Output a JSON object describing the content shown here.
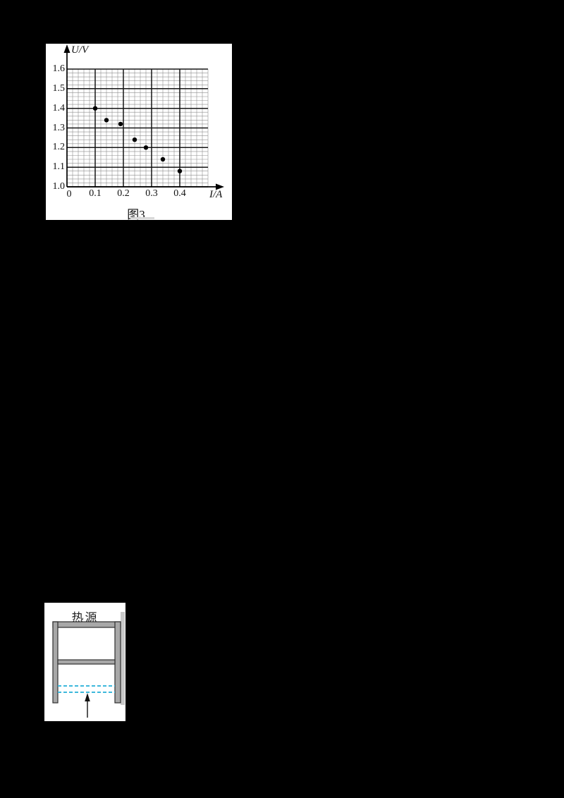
{
  "page": {
    "background": "#000000"
  },
  "chart": {
    "caption": "图3",
    "y_axis_label": "U/V",
    "x_axis_label": "I/A",
    "origin_label": "0"
  },
  "chart_data": {
    "type": "scatter",
    "title": "图3",
    "xlabel": "I/A",
    "ylabel": "U/V",
    "xlim": [
      0,
      0.5
    ],
    "ylim": [
      1.0,
      1.6
    ],
    "x_ticks": [
      0.1,
      0.2,
      0.3,
      0.4
    ],
    "x_tick_labels": [
      "0.1",
      "0.2",
      "0.3",
      "0.4"
    ],
    "y_ticks": [
      1.0,
      1.1,
      1.2,
      1.3,
      1.4,
      1.5,
      1.6
    ],
    "y_tick_labels": [
      "1.0",
      "1.1",
      "1.2",
      "1.3",
      "1.4",
      "1.5",
      "1.6"
    ],
    "minor_grid_step": {
      "x": 0.02,
      "y": 0.02
    },
    "grid": "fine graph paper, minor every 0.02, major every 0.1",
    "legend": null,
    "points": [
      {
        "x": 0.1,
        "y": 1.4
      },
      {
        "x": 0.14,
        "y": 1.34
      },
      {
        "x": 0.19,
        "y": 1.32
      },
      {
        "x": 0.24,
        "y": 1.24
      },
      {
        "x": 0.28,
        "y": 1.2
      },
      {
        "x": 0.34,
        "y": 1.14
      },
      {
        "x": 0.4,
        "y": 1.08
      }
    ]
  },
  "heat_diagram": {
    "label": "热源",
    "colors": {
      "bar": "#a8a8a8",
      "bar_outline": "#2f2f2f",
      "dashed_line": "#3db8dc",
      "strip": "#c9c9c9"
    }
  }
}
